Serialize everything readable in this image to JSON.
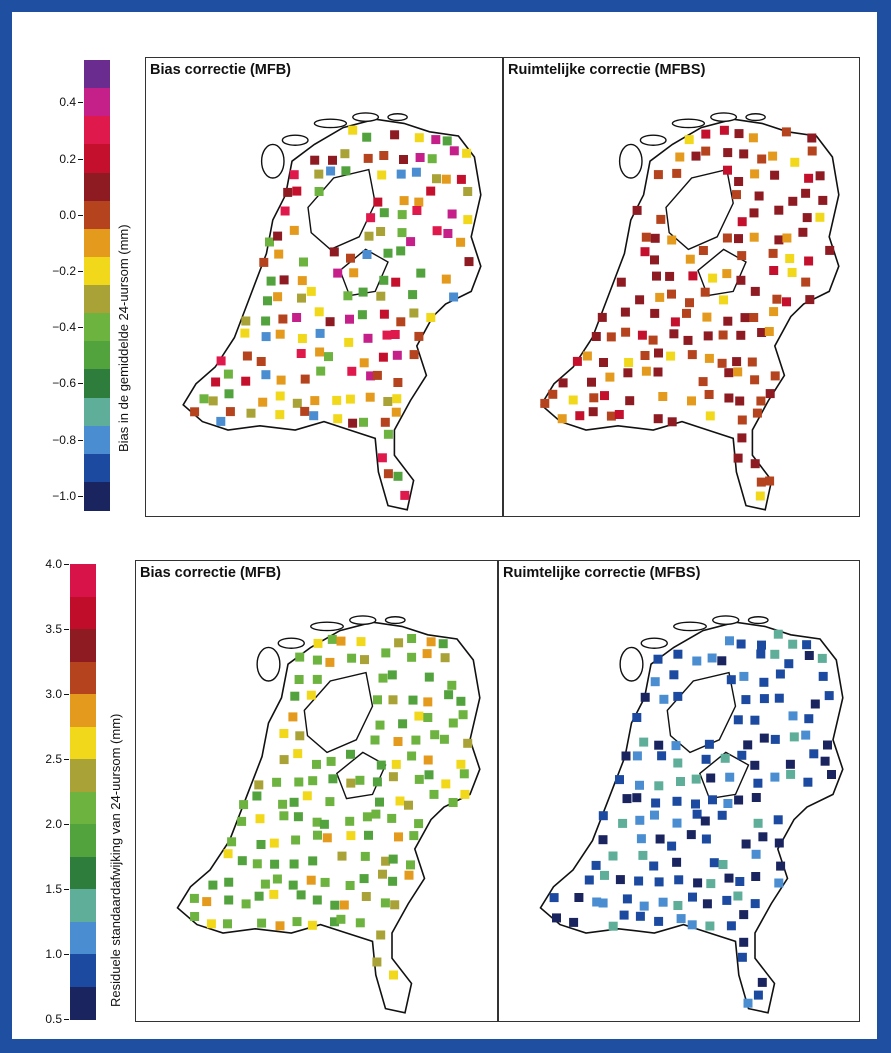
{
  "top": {
    "colorbar": {
      "label": "Bias in de gemiddelde 24-uursom (mm)",
      "ticks": [
        "0.4",
        "0.2",
        "0.0",
        "−0.2",
        "−0.4",
        "−0.6",
        "−0.8",
        "−1.0"
      ],
      "colors": [
        "#6a2c8e",
        "#c51f8a",
        "#e0194c",
        "#c4102c",
        "#8e1a22",
        "#b5431d",
        "#e49a1c",
        "#f2d81a",
        "#a9a236",
        "#6db33f",
        "#52a23d",
        "#2f7d3c",
        "#5fae9a",
        "#4a8dd0",
        "#1b4aa0",
        "#1a2560"
      ]
    },
    "left_title": "Bias correctie (MFB)",
    "right_title": "Ruimtelijke correctie (MFBS)"
  },
  "bottom": {
    "colorbar": {
      "label": "Residuele standaardafwijking van 24-uursom (mm)",
      "ticks": [
        "4.0",
        "3.5",
        "3.0",
        "2.5",
        "2.0",
        "1.5",
        "1.0",
        "0.5"
      ],
      "colors": [
        "#d8134a",
        "#c00e2a",
        "#8e1a22",
        "#b5431d",
        "#e49a1c",
        "#f2d81a",
        "#a9a236",
        "#6db33f",
        "#52a23d",
        "#2f7d3c",
        "#5fae9a",
        "#4a8dd0",
        "#1b4aa0",
        "#1a2560"
      ]
    },
    "left_title": "Bias correctie (MFB)",
    "right_title": "Ruimtelijke correctie (MFBS)"
  },
  "map_palettes": {
    "top_mfb": [
      "#8e1a22",
      "#b5431d",
      "#c4102c",
      "#e49a1c",
      "#f2d81a",
      "#a9a236",
      "#6db33f",
      "#c51f8a",
      "#52a23d",
      "#4a8dd0",
      "#e0194c"
    ],
    "top_mfbs": [
      "#8e1a22",
      "#b5431d",
      "#8e1a22",
      "#b5431d",
      "#e49a1c",
      "#8e1a22",
      "#c4102c",
      "#f2d81a"
    ],
    "bottom_mfb": [
      "#6db33f",
      "#52a23d",
      "#6db33f",
      "#a9a236",
      "#6db33f",
      "#e49a1c",
      "#52a23d",
      "#f2d81a"
    ],
    "bottom_mfbs": [
      "#1b4aa0",
      "#1a2560",
      "#4a8dd0",
      "#1b4aa0",
      "#1a2560",
      "#1b4aa0",
      "#5fae9a",
      "#4a8dd0"
    ]
  }
}
